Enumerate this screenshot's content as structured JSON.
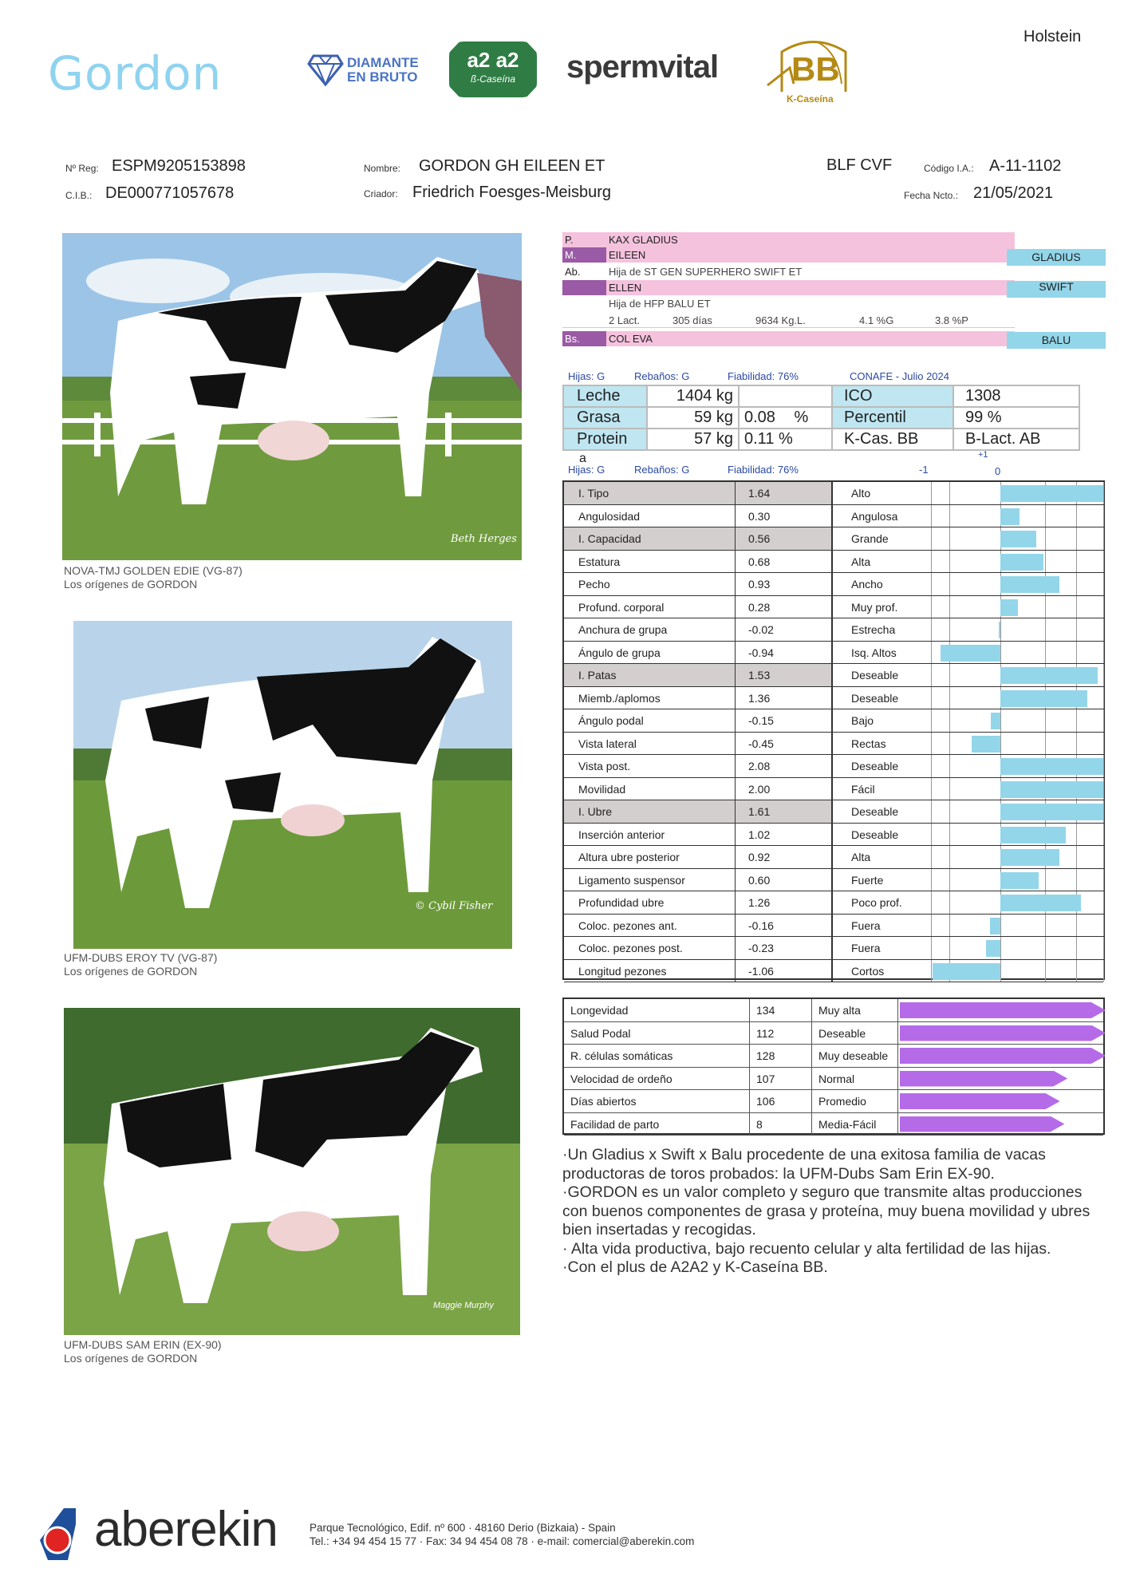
{
  "header": {
    "breed": "Holstein",
    "bull_name": "Gordon",
    "logos": {
      "diamante": "DIAMANTE\nEN BRUTO",
      "a2": "a2 a2",
      "a2_sub": "ß-Caseína",
      "spermvital": "spermvital",
      "bb": "BB",
      "bb_sub": "K-Caseína"
    }
  },
  "id": {
    "reg_label": "Nº Reg:",
    "reg_value": "ESPM9205153898",
    "cib_label": "C.I.B.:",
    "cib_value": "DE000771057678",
    "nombre_label": "Nombre:",
    "nombre_value": "GORDON GH EILEEN ET",
    "criador_label": "Criador:",
    "criador_value": "Friedrich Foesges-Meisburg",
    "codes": "BLF CVF",
    "codigo_label": "Código I.A.:",
    "codigo_value": "A-11-1102",
    "fecha_label": "Fecha Ncto.:",
    "fecha_value": "21/05/2021"
  },
  "photos": [
    {
      "caption": "NOVA-TMJ GOLDEN EDIE (VG-87)",
      "sub": "Los orígenes de GORDON",
      "credit": "Beth Herges"
    },
    {
      "caption": "UFM-DUBS EROY TV (VG-87)",
      "sub": "Los orígenes de GORDON",
      "credit": "© Cybil Fisher"
    },
    {
      "caption": "UFM-DUBS SAM ERIN (EX-90)",
      "sub": "Los orígenes de GORDON",
      "credit": "Maggie Murphy"
    }
  ],
  "pedigree": {
    "p_code": "P.",
    "p_name": "KAX GLADIUS",
    "m_code": "M.",
    "m_name": "EILEEN",
    "ab_code": "Ab.",
    "ab_line": "Hija de ST GEN SUPERHERO SWIFT ET",
    "ellen": "ELLEN",
    "ellen_line": "Hija de HFP BALU ET",
    "lact": "2 Lact.",
    "dias": "305 días",
    "kg": "9634 Kg.L.",
    "g": "4.1 %G",
    "p": "3.8 %P",
    "bs_code": "Bs.",
    "bs_name": "COL EVA",
    "tag_gladius": "GLADIUS",
    "tag_swift": "SWIFT",
    "tag_balu": "BALU"
  },
  "proof": {
    "hijas": "Hijas: G",
    "rebanos": "Rebaños: G",
    "fiabilidad": "Fiabilidad: 76%",
    "source": "CONAFE - Julio 2024",
    "leche_label": "Leche",
    "leche_val": "1404 kg",
    "grasa_label": "Grasa",
    "grasa_val": "59 kg",
    "grasa_pct": "0.08",
    "pct_sign": "%",
    "prot_label": "Protein",
    "prot_a": "a",
    "prot_val": "57 kg",
    "prot_pct": "0.11 %",
    "ico_label": "ICO",
    "ico_val": "1308",
    "perc_label": "Percentil",
    "perc_val": "99 %",
    "kcas_label": "K-Cas. BB",
    "blact_label": "B-Lact. AB"
  },
  "type_header": {
    "hijas": "Hijas: G",
    "rebanos": "Rebaños: G",
    "fiabilidad": "Fiabilidad: 76%",
    "tick_plus1": "+1",
    "tick_minus1": "-1",
    "tick_zero": "0"
  },
  "type_traits": [
    {
      "name": "I. Tipo",
      "value": "1.64",
      "desc": "Alto",
      "v": 1.64,
      "group": true
    },
    {
      "name": "Angulosidad",
      "value": "0.30",
      "desc": "Angulosa",
      "v": 0.3
    },
    {
      "name": "I. Capacidad",
      "value": "0.56",
      "desc": "Grande",
      "v": 0.56,
      "group": true
    },
    {
      "name": "Estatura",
      "value": "0.68",
      "desc": "Alta",
      "v": 0.68
    },
    {
      "name": "Pecho",
      "value": "0.93",
      "desc": "Ancho",
      "v": 0.93
    },
    {
      "name": "Profund. corporal",
      "value": "0.28",
      "desc": "Muy   prof.",
      "v": 0.28
    },
    {
      "name": "Anchura de grupa",
      "value": "-0.02",
      "desc": "Estrecha",
      "v": -0.02
    },
    {
      "name": "Ángulo de grupa",
      "value": "-0.94",
      "desc": "Isq.   Altos",
      "v": -0.94
    },
    {
      "name": "I. Patas",
      "value": "1.53",
      "desc": "Deseable",
      "v": 1.53,
      "group": true
    },
    {
      "name": "Miemb./aplomos",
      "value": "1.36",
      "desc": "Deseable",
      "v": 1.36
    },
    {
      "name": "Ángulo podal",
      "value": "-0.15",
      "desc": "Bajo",
      "v": -0.15
    },
    {
      "name": "Vista lateral",
      "value": "-0.45",
      "desc": "Rectas",
      "v": -0.45
    },
    {
      "name": "Vista post.",
      "value": "2.08",
      "desc": "Deseable",
      "v": 2.08
    },
    {
      "name": "Movilidad",
      "value": "2.00",
      "desc": "Fácil",
      "v": 2.0
    },
    {
      "name": "I. Ubre",
      "value": "1.61",
      "desc": "Deseable",
      "v": 1.61,
      "group": true
    },
    {
      "name": "Inserción anterior",
      "value": "1.02",
      "desc": "Deseable",
      "v": 1.02
    },
    {
      "name": "Altura ubre posterior",
      "value": "0.92",
      "desc": "Alta",
      "v": 0.92
    },
    {
      "name": "Ligamento suspensor",
      "value": "0.60",
      "desc": "Fuerte",
      "v": 0.6
    },
    {
      "name": "Profundidad ubre",
      "value": "1.26",
      "desc": "Poco prof.",
      "v": 1.26
    },
    {
      "name": "Coloc. pezones ant.",
      "value": "-0.16",
      "desc": "Fuera",
      "v": -0.16
    },
    {
      "name": "Coloc. pezones post.",
      "value": "-0.23",
      "desc": "Fuera",
      "v": -0.23
    },
    {
      "name": "Longitud pezones",
      "value": "-1.06",
      "desc": "Cortos",
      "v": -1.06
    }
  ],
  "functional": [
    {
      "name": "Longevidad",
      "value": "134",
      "desc": "Muy alta",
      "v": 134
    },
    {
      "name": "Salud Podal",
      "value": "112",
      "desc": "Deseable",
      "v": 112
    },
    {
      "name": "R. células somáticas",
      "value": "128",
      "desc": "Muy deseable",
      "v": 128
    },
    {
      "name": "Velocidad de ordeño",
      "value": "107",
      "desc": "Normal",
      "v": 107
    },
    {
      "name": "Días abiertos",
      "value": "106",
      "desc": "Promedio",
      "v": 106
    },
    {
      "name": "Facilidad de parto",
      "value": "8",
      "desc": "Media-Fácil",
      "v": 8
    }
  ],
  "description": [
    "·Un Gladius x Swift x Balu procedente de una exitosa familia de vacas productoras de toros probados: la UFM-Dubs Sam Erin EX-90.",
    "·GORDON es un valor completo y seguro que transmite altas producciones con buenos componentes de grasa y proteína, muy buena movilidad y ubres bien insertadas y recogidas.",
    "·   Alta vida productiva, bajo recuento celular y alta fertilidad de las hijas.",
    "·Con el plus de A2A2 y K-Caseína BB."
  ],
  "footer": {
    "brand": "aberekin",
    "line1": "Parque Tecnológico, Edif. nº 600 · 48160 Derio (Bizkaia) - Spain",
    "line2": "Tel.: +34 94 454 15 77 · Fax: 34 94 454 08 78 · e-mail: comercial@aberekin.com"
  },
  "colors": {
    "accent_blue": "#93d6ea",
    "pink": "#f5c2de",
    "purple": "#9a5aa5",
    "func_bar": "#b56be8",
    "group_gray": "#d4cfcf"
  }
}
